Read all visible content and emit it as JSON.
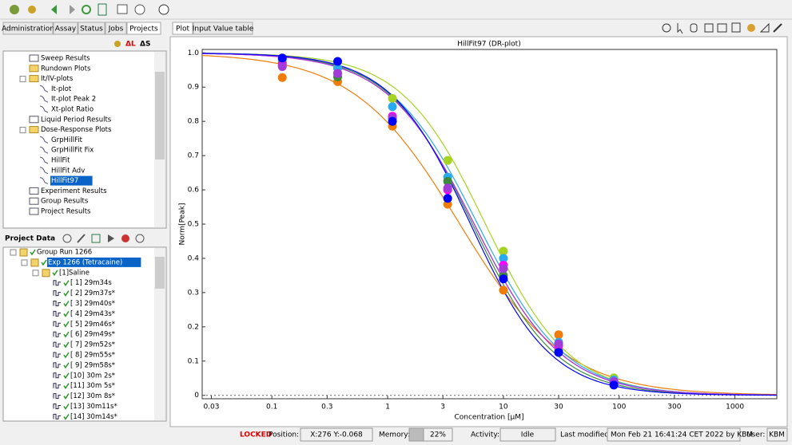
{
  "toolbar_tabs": [
    "Administration",
    "Assay",
    "Status",
    "Jobs",
    "Projects"
  ],
  "project_marks": [
    "ΔL",
    "ΔS"
  ],
  "project_tree": [
    {
      "label": "Sweep Results",
      "icon": "table"
    },
    {
      "label": "Rundown Plots",
      "icon": "folder"
    },
    {
      "label": "It/IV-plots",
      "icon": "folder",
      "children": [
        {
          "label": "It-plot",
          "icon": "plot"
        },
        {
          "label": "It-plot Peak 2",
          "icon": "plot"
        },
        {
          "label": "Xt-plot Ratio",
          "icon": "plot"
        }
      ]
    },
    {
      "label": "Liquid Period Results",
      "icon": "table"
    },
    {
      "label": "Dose-Response Plots",
      "icon": "folder",
      "children": [
        {
          "label": "GrpHillFit",
          "icon": "plot"
        },
        {
          "label": "GrpHillFit Fix",
          "icon": "plot"
        },
        {
          "label": "HillFit",
          "icon": "plot"
        },
        {
          "label": "HillFit Adv",
          "icon": "plot"
        },
        {
          "label": "HillFit97",
          "icon": "plot",
          "selected": true
        }
      ]
    },
    {
      "label": "Experiment Results",
      "icon": "table"
    },
    {
      "label": "Group Results",
      "icon": "table"
    },
    {
      "label": "Project Results",
      "icon": "table"
    }
  ],
  "project_data": {
    "title": "Project Data",
    "tree": [
      {
        "label": "Group Run 1266",
        "children": [
          {
            "label": "Exp 1266 (Tetracaine)",
            "selected": true,
            "children": [
              {
                "label": "[1]Saline",
                "children": [
                  {
                    "label": "[ 1] 29m34s"
                  },
                  {
                    "label": "[ 2] 29m37s*"
                  },
                  {
                    "label": "[ 3] 29m40s*"
                  },
                  {
                    "label": "[ 4] 29m43s*"
                  },
                  {
                    "label": "[ 5] 29m46s*"
                  },
                  {
                    "label": "[ 6] 29m49s*"
                  },
                  {
                    "label": "[ 7] 29m52s*"
                  },
                  {
                    "label": "[ 8] 29m55s*"
                  },
                  {
                    "label": "[ 9] 29m58s*"
                  },
                  {
                    "label": "[10] 30m 2s*"
                  },
                  {
                    "label": "[11] 30m 5s*"
                  },
                  {
                    "label": "[12] 30m 8s*"
                  },
                  {
                    "label": "[13] 30m11s*"
                  },
                  {
                    "label": "[14] 30m14s*"
                  }
                ]
              }
            ]
          }
        ]
      }
    ]
  },
  "view_tabs": [
    "Plot",
    "Input Value table"
  ],
  "chart_data": {
    "type": "scatter",
    "title": "HillFit97 (DR-plot)",
    "xlabel": "Concentration [µM]",
    "ylabel": "Norm[Peak]",
    "log_x": true,
    "fit": "hill",
    "x": [
      0.123,
      0.37,
      1.1,
      3.3,
      10,
      30,
      90
    ],
    "xlim": [
      0.025,
      2300
    ],
    "xticks": [
      0.03,
      0.1,
      0.3,
      1,
      3,
      10,
      30,
      100,
      300,
      1000
    ],
    "ylim": [
      -0.01,
      1.01
    ],
    "yticks": [
      0,
      0.1,
      0.2,
      0.3,
      0.4,
      0.5,
      0.6,
      0.7,
      0.8,
      0.9,
      {
        "value": 1,
        "label": "1.0"
      }
    ],
    "series": [
      {
        "color": "#f07d0a",
        "values": [
          0.928,
          0.916,
          0.786,
          0.558,
          0.307,
          0.177,
          0.047
        ],
        "ic50": 4.2,
        "hill": 0.95
      },
      {
        "color": "#a6d321",
        "values": [
          0.97,
          0.956,
          0.867,
          0.686,
          0.421,
          0.151,
          0.051
        ],
        "ic50": 7,
        "hill": 1.2
      },
      {
        "color": "#29aaf0",
        "values": [
          0.98,
          0.955,
          0.843,
          0.637,
          0.4,
          0.155,
          0.045
        ],
        "ic50": 6,
        "hill": 1.15
      },
      {
        "color": "#3c8c3c",
        "values": [
          0.97,
          0.93,
          0.81,
          0.625,
          0.35,
          0.13,
          0.035
        ],
        "ic50": 5.4,
        "hill": 1.2
      },
      {
        "color": "#ff00ff",
        "values": [
          0.965,
          0.94,
          0.815,
          0.6,
          0.38,
          0.145,
          0.04
        ],
        "ic50": 5.6,
        "hill": 1.15
      },
      {
        "color": "#a23cd8",
        "values": [
          0.96,
          0.94,
          0.81,
          0.605,
          0.37,
          0.15,
          0.04
        ],
        "ic50": 5.6,
        "hill": 1.15
      },
      {
        "color": "#0000ff",
        "values": [
          0.985,
          0.975,
          0.8,
          0.575,
          0.34,
          0.125,
          0.03
        ],
        "ic50": 5.2,
        "hill": 1.25
      }
    ]
  },
  "status": {
    "locked": "LOCKED",
    "position_label": "Position:",
    "position": "X:276 Y:-0.068",
    "memory_label": "Memory:",
    "memory": "22%",
    "activity_label": "Activity:",
    "activity": "Idle",
    "modified_label": "Last modified:",
    "modified": "Mon Feb 21 16:41:24 CET 2022 by KBM",
    "user_label": "User:",
    "user": "KBM"
  }
}
